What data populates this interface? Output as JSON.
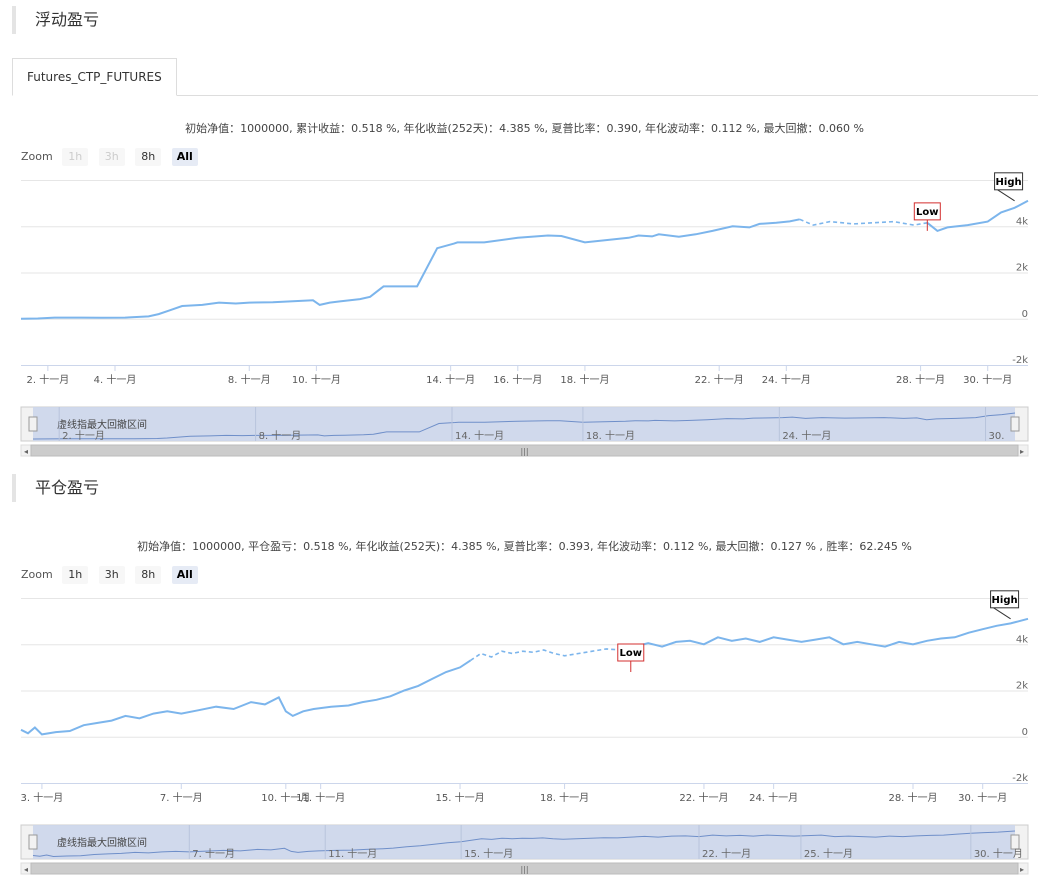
{
  "sections": [
    {
      "title": "浮动盈亏"
    },
    {
      "title": "平仓盈亏"
    }
  ],
  "tabs": [
    {
      "label": "Futures_CTP_FUTURES"
    }
  ],
  "zoom": {
    "label": "Zoom",
    "buttons": [
      "1h",
      "3h",
      "8h",
      "All"
    ],
    "selected": "All"
  },
  "chart_data": [
    {
      "type": "line",
      "stats_text": "初始净值：1000000, 累计收益：0.518 %, 年化收益(252天)：4.385 %, 夏普比率：0.390, 年化波动率：0.112 %, 最大回撤：0.060 %",
      "zoom_disabled": [
        "1h",
        "3h"
      ],
      "ylim": [
        -2000,
        6000
      ],
      "yticks": [
        -2000,
        0,
        2000,
        4000
      ],
      "ytick_labels": [
        "-2k",
        "0",
        "2k",
        "4k"
      ],
      "xlim": [
        1.2,
        31.2
      ],
      "xticks": [
        2,
        4,
        8,
        10,
        14,
        16,
        18,
        22,
        24,
        28,
        30
      ],
      "xtick_labels": [
        "2. 十一月",
        "4. 十一月",
        "8. 十一月",
        "10. 十一月",
        "14. 十一月",
        "16. 十一月",
        "18. 十一月",
        "22. 十一月",
        "24. 十一月",
        "28. 十一月",
        "30. 十一月"
      ],
      "series": [
        {
          "color": "#7cb5ec",
          "x": [
            1.2,
            1.7,
            2.2,
            3.0,
            3.6,
            4.3,
            5.0,
            5.3,
            5.6,
            6.0,
            6.6,
            7.1,
            7.6,
            8.0,
            8.7,
            9.3,
            9.9,
            10.1,
            10.4,
            10.7,
            11.3,
            11.6,
            12.0,
            12.4,
            13.0,
            13.6,
            14.1,
            14.2,
            14.6,
            15.0,
            16.0,
            16.9,
            17.3,
            18.0,
            19.3,
            19.6,
            20.0,
            20.2,
            20.8,
            21.3,
            21.8,
            22.4,
            22.9,
            23.2,
            23.7,
            24.1,
            24.4,
            24.8,
            25.3,
            26.0,
            27.2,
            27.8,
            28.2,
            28.5,
            28.8,
            29.4,
            30.0,
            30.4,
            30.8,
            31.2
          ],
          "y": [
            0,
            10,
            50,
            50,
            40,
            50,
            100,
            200,
            350,
            550,
            600,
            700,
            660,
            700,
            710,
            760,
            800,
            600,
            700,
            750,
            850,
            950,
            1400,
            1400,
            1400,
            3050,
            3250,
            3300,
            3300,
            3300,
            3500,
            3600,
            3580,
            3300,
            3500,
            3600,
            3560,
            3650,
            3550,
            3650,
            3800,
            4000,
            3950,
            4100,
            4150,
            4210,
            4300,
            4050,
            4200,
            4100,
            4200,
            4050,
            4150,
            3800,
            3950,
            4050,
            4200,
            4600,
            4800,
            5100
          ],
          "dashed_range": [
            24.4,
            28.2
          ]
        }
      ],
      "annotations": [
        {
          "label": "High",
          "x": 30.8,
          "y": 5100
        },
        {
          "label": "Low",
          "x": 28.2,
          "y": 3800
        }
      ],
      "navigator": {
        "label": "虚线指最大回撤区间",
        "tick_labels": [
          "2. 十一月",
          "8. 十一月",
          "14. 十一月",
          "18. 十一月",
          "24. 十一月",
          "30. "
        ]
      }
    },
    {
      "type": "line",
      "stats_text": "初始净值：1000000, 平仓盈亏：0.518 %, 年化收益(252天)：4.385 %, 夏普比率：0.393, 年化波动率：0.112 %, 最大回撤：0.127 % , 胜率：62.245 %",
      "zoom_disabled": [],
      "ylim": [
        -2000,
        6000
      ],
      "yticks": [
        -2000,
        0,
        2000,
        4000
      ],
      "ytick_labels": [
        "-2k",
        "0",
        "2k",
        "4k"
      ],
      "xlim": [
        2.4,
        31.3
      ],
      "xticks": [
        3,
        7,
        10,
        11,
        15,
        18,
        22,
        24,
        28,
        30
      ],
      "xtick_labels": [
        "3. 十一月",
        "7. 十一月",
        "10. 十一月",
        "11. 十一月",
        "15. 十一月",
        "18. 十一月",
        "22. 十一月",
        "24. 十一月",
        "28. 十一月",
        "30. 十一月"
      ],
      "series": [
        {
          "color": "#7cb5ec",
          "x": [
            2.4,
            2.6,
            2.8,
            3.0,
            3.4,
            3.8,
            4.2,
            4.6,
            5.0,
            5.4,
            5.8,
            6.2,
            6.6,
            7.0,
            7.5,
            8.0,
            8.5,
            9.0,
            9.4,
            9.8,
            10.0,
            10.2,
            10.5,
            10.8,
            11.3,
            11.8,
            12.2,
            12.6,
            13.0,
            13.4,
            13.8,
            14.2,
            14.6,
            15.0,
            15.3,
            15.6,
            15.9,
            16.2,
            16.5,
            16.8,
            17.1,
            17.4,
            17.7,
            18.0,
            18.4,
            18.8,
            19.2,
            19.6,
            20.0,
            20.4,
            20.8,
            21.2,
            21.6,
            22.0,
            22.4,
            22.8,
            23.2,
            23.6,
            24.0,
            24.4,
            24.8,
            25.2,
            25.6,
            26.0,
            26.4,
            26.8,
            27.2,
            27.6,
            28.0,
            28.4,
            28.8,
            29.2,
            29.6,
            30.0,
            30.4,
            30.8,
            31.3
          ],
          "y": [
            300,
            150,
            400,
            100,
            200,
            250,
            500,
            600,
            700,
            900,
            800,
            1000,
            1100,
            1000,
            1150,
            1300,
            1200,
            1500,
            1400,
            1700,
            1100,
            900,
            1100,
            1200,
            1300,
            1350,
            1500,
            1600,
            1750,
            2000,
            2200,
            2500,
            2800,
            3000,
            3300,
            3600,
            3450,
            3700,
            3600,
            3700,
            3650,
            3750,
            3600,
            3500,
            3600,
            3700,
            3800,
            3750,
            3900,
            4050,
            3900,
            4100,
            4150,
            4000,
            4300,
            4150,
            4250,
            4100,
            4300,
            4200,
            4100,
            4200,
            4300,
            4000,
            4100,
            4000,
            3900,
            4100,
            4000,
            4150,
            4250,
            4300,
            4500,
            4650,
            4800,
            4900,
            5100
          ],
          "dashed_range": [
            15.3,
            19.9
          ]
        }
      ],
      "annotations": [
        {
          "label": "High",
          "x": 30.8,
          "y": 5100
        },
        {
          "label": "Low",
          "x": 19.9,
          "y": 2800
        }
      ],
      "navigator": {
        "label": "虚线指最大回撤区间",
        "tick_labels": [
          "7. 十一月",
          "11. 十一月",
          "15. 十一月",
          "22. 十一月",
          "25. 十一月",
          "30. 十一月"
        ]
      }
    }
  ]
}
